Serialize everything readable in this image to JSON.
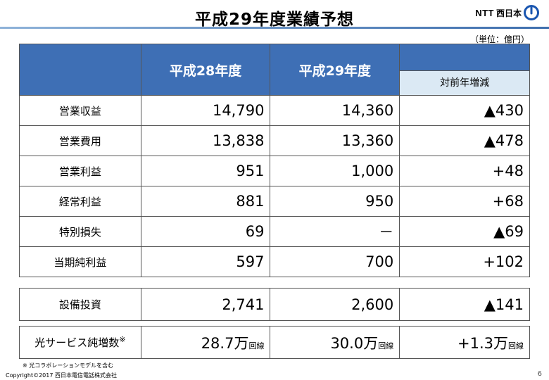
{
  "title": "平成29年度業績予想",
  "logo": {
    "text": "NTT",
    "jp": "西日本",
    "icon": "ntt-logo-icon"
  },
  "unit": "（単位：億円）",
  "header": {
    "col1": "平成28年度",
    "col2": "平成29年度",
    "col3": "対前年増減"
  },
  "rows": [
    {
      "label": "営業収益",
      "v28": "14,790",
      "v29": "14,360",
      "diff": "▲430"
    },
    {
      "label": "営業費用",
      "v28": "13,838",
      "v29": "13,360",
      "diff": "▲478"
    },
    {
      "label": "営業利益",
      "v28": "951",
      "v29": "1,000",
      "diff": "+48"
    },
    {
      "label": "経常利益",
      "v28": "881",
      "v29": "950",
      "diff": "+68"
    },
    {
      "label": "特別損失",
      "v28": "69",
      "v29": "－",
      "diff": "▲69"
    },
    {
      "label": "当期純利益",
      "v28": "597",
      "v29": "700",
      "diff": "+102"
    }
  ],
  "investment": {
    "label": "設備投資",
    "v28": "2,741",
    "v29": "2,600",
    "diff": "▲141"
  },
  "optical": {
    "label": "光サービス純増数",
    "note_mark": "※",
    "v28": "28.7万",
    "v29": "30.0万",
    "diff": "+1.3万",
    "unit": "回線"
  },
  "footnote": "※ 光コラボレーションモデルを含む",
  "copyright": "Copyright©2017 西日本電信電話株式会社",
  "page": "6"
}
